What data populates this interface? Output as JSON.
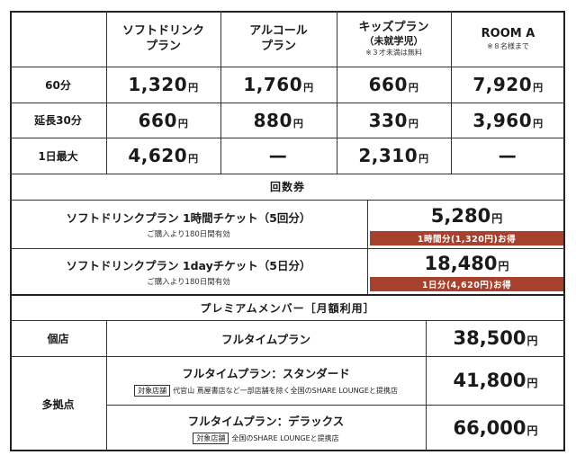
{
  "header": {
    "soft": [
      "ソフトドリンク",
      "プラン"
    ],
    "alcohol": [
      "アルコール",
      "プラン"
    ],
    "kids": [
      "キッズプラン",
      "（未就学児）",
      "※３才未満は無料"
    ],
    "room": [
      "ROOM A",
      "※８名様まで"
    ]
  },
  "rows": [
    {
      "label": "60分",
      "prices": [
        {
          "num": "1,320",
          "unit": "円"
        },
        {
          "num": "1,760",
          "unit": "円"
        },
        {
          "num": "660",
          "unit": "円"
        },
        {
          "num": "7,920",
          "unit": "円"
        }
      ]
    },
    {
      "label": "延長30分",
      "prices": [
        {
          "num": "660",
          "unit": "円"
        },
        {
          "num": "880",
          "unit": "円"
        },
        {
          "num": "330",
          "unit": "円"
        },
        {
          "num": "3,960",
          "unit": "円"
        }
      ]
    },
    {
      "label": "1日最大",
      "prices": [
        {
          "num": "4,620",
          "unit": "円"
        },
        {
          "num": "—",
          "unit": ""
        },
        {
          "num": "2,310",
          "unit": "円"
        },
        {
          "num": "—",
          "unit": ""
        }
      ]
    }
  ],
  "coupon": {
    "title": "回数券",
    "items": [
      {
        "name": "ソフトドリンクプラン 1時間チケット（5回分）",
        "note": "ご購入より180日間有効",
        "price": "5,280",
        "unit": "円",
        "badge": "1時間分(1,320円)お得"
      },
      {
        "name": "ソフトドリンクプラン 1dayチケット（5日分）",
        "note": "ご購入より180日間有効",
        "price": "18,480",
        "unit": "円",
        "badge": "1日分(4,620円)お得"
      }
    ]
  },
  "premium": {
    "title": "プレミアムメンバー［月額利用］",
    "single_label": "個店",
    "multi_label": "多拠点",
    "plans": [
      {
        "name": "フルタイムプラン",
        "price": "38,500",
        "unit": "円"
      },
      {
        "name": "フルタイムプラン：スタンダード",
        "tag": "対象店舗",
        "note": "代官山 蔦屋書店など一部店舗を除く全国のSHARE LOUNGEと提携店",
        "price": "41,800",
        "unit": "円"
      },
      {
        "name": "フルタイムプラン：デラックス",
        "tag": "対象店舗",
        "note": "全国のSHARE LOUNGEと提携店",
        "price": "66,000",
        "unit": "円"
      }
    ]
  }
}
